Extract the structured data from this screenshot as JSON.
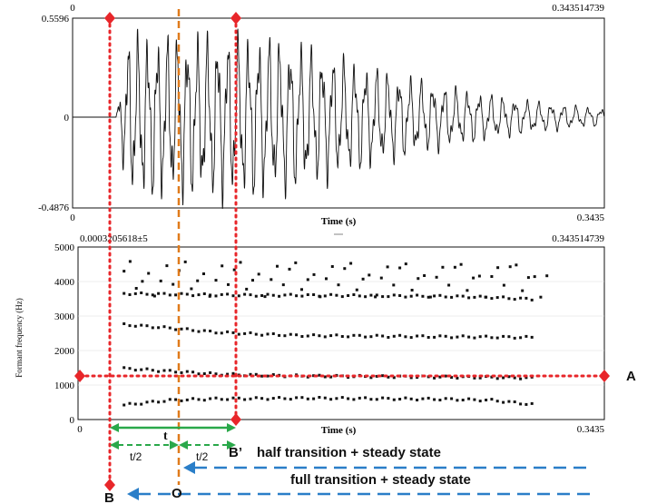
{
  "waveform": {
    "y_top_label": "0.5596",
    "y_zero_label": "0",
    "y_bottom_label": "-0.4876",
    "x_top_left_label": "0",
    "x_top_right_label": "0.343514739",
    "x_bottom_left_label": "0",
    "x_bottom_right_label": "0.3435",
    "xlabel": "Time (s)"
  },
  "spectrogram": {
    "top_left_label": "0.0003205618±5",
    "top_right_label": "0.343514739",
    "ylabel": "Formant frequency (Hz)",
    "yticks": [
      "5000",
      "4000",
      "3000",
      "2000",
      "1000",
      "0"
    ],
    "x_left_label": "0",
    "x_right_label": "0.3435",
    "xlabel": "Time (s)"
  },
  "annotations": {
    "A": "A",
    "B": "B",
    "B_prime": "B’",
    "O": "O",
    "t": "t",
    "t_half_left": "t/2",
    "t_half_right": "t/2",
    "half_transition_text": "half transition + steady state",
    "full_transition_text": "full transition + steady state"
  },
  "colors": {
    "red_marker": "#e8262a",
    "orange_marker": "#e07b1c",
    "green_arrow": "#2aa84a",
    "blue_arrow": "#2a7ec8",
    "ink": "#111111"
  },
  "chart_data": [
    {
      "type": "line",
      "title": "",
      "xlabel": "Time (s)",
      "ylabel": "",
      "xlim": [
        0,
        0.3435
      ],
      "ylim": [
        -0.4876,
        0.5596
      ],
      "description_values": {
        "onset_time": 0.028,
        "peak_amplitude": 0.5596,
        "min_amplitude": -0.4876
      }
    },
    {
      "type": "scatter",
      "title": "",
      "xlabel": "Time (s)",
      "ylabel": "Formant frequency (Hz)",
      "xlim": [
        0,
        0.3435
      ],
      "ylim": [
        0,
        5000
      ],
      "series": [
        {
          "x": [
            0.03,
            0.06,
            0.09,
            0.12,
            0.15,
            0.18,
            0.21,
            0.24,
            0.27,
            0.3
          ],
          "y": [
            420,
            560,
            600,
            610,
            620,
            610,
            600,
            590,
            560,
            420
          ]
        },
        {
          "x": [
            0.03,
            0.06,
            0.09,
            0.12,
            0.15,
            0.18,
            0.21,
            0.24,
            0.27,
            0.3
          ],
          "y": [
            1480,
            1400,
            1320,
            1280,
            1260,
            1250,
            1240,
            1230,
            1220,
            1200
          ]
        },
        {
          "x": [
            0.03,
            0.06,
            0.09,
            0.12,
            0.15,
            0.18,
            0.21,
            0.24,
            0.27,
            0.3
          ],
          "y": [
            2750,
            2650,
            2530,
            2470,
            2430,
            2420,
            2410,
            2400,
            2390,
            2380
          ]
        },
        {
          "x": [
            0.03,
            0.06,
            0.09,
            0.12,
            0.15,
            0.18,
            0.21,
            0.24,
            0.27,
            0.3
          ],
          "y": [
            3650,
            3630,
            3610,
            3600,
            3600,
            3590,
            3580,
            3570,
            3540,
            3480
          ]
        }
      ]
    }
  ]
}
